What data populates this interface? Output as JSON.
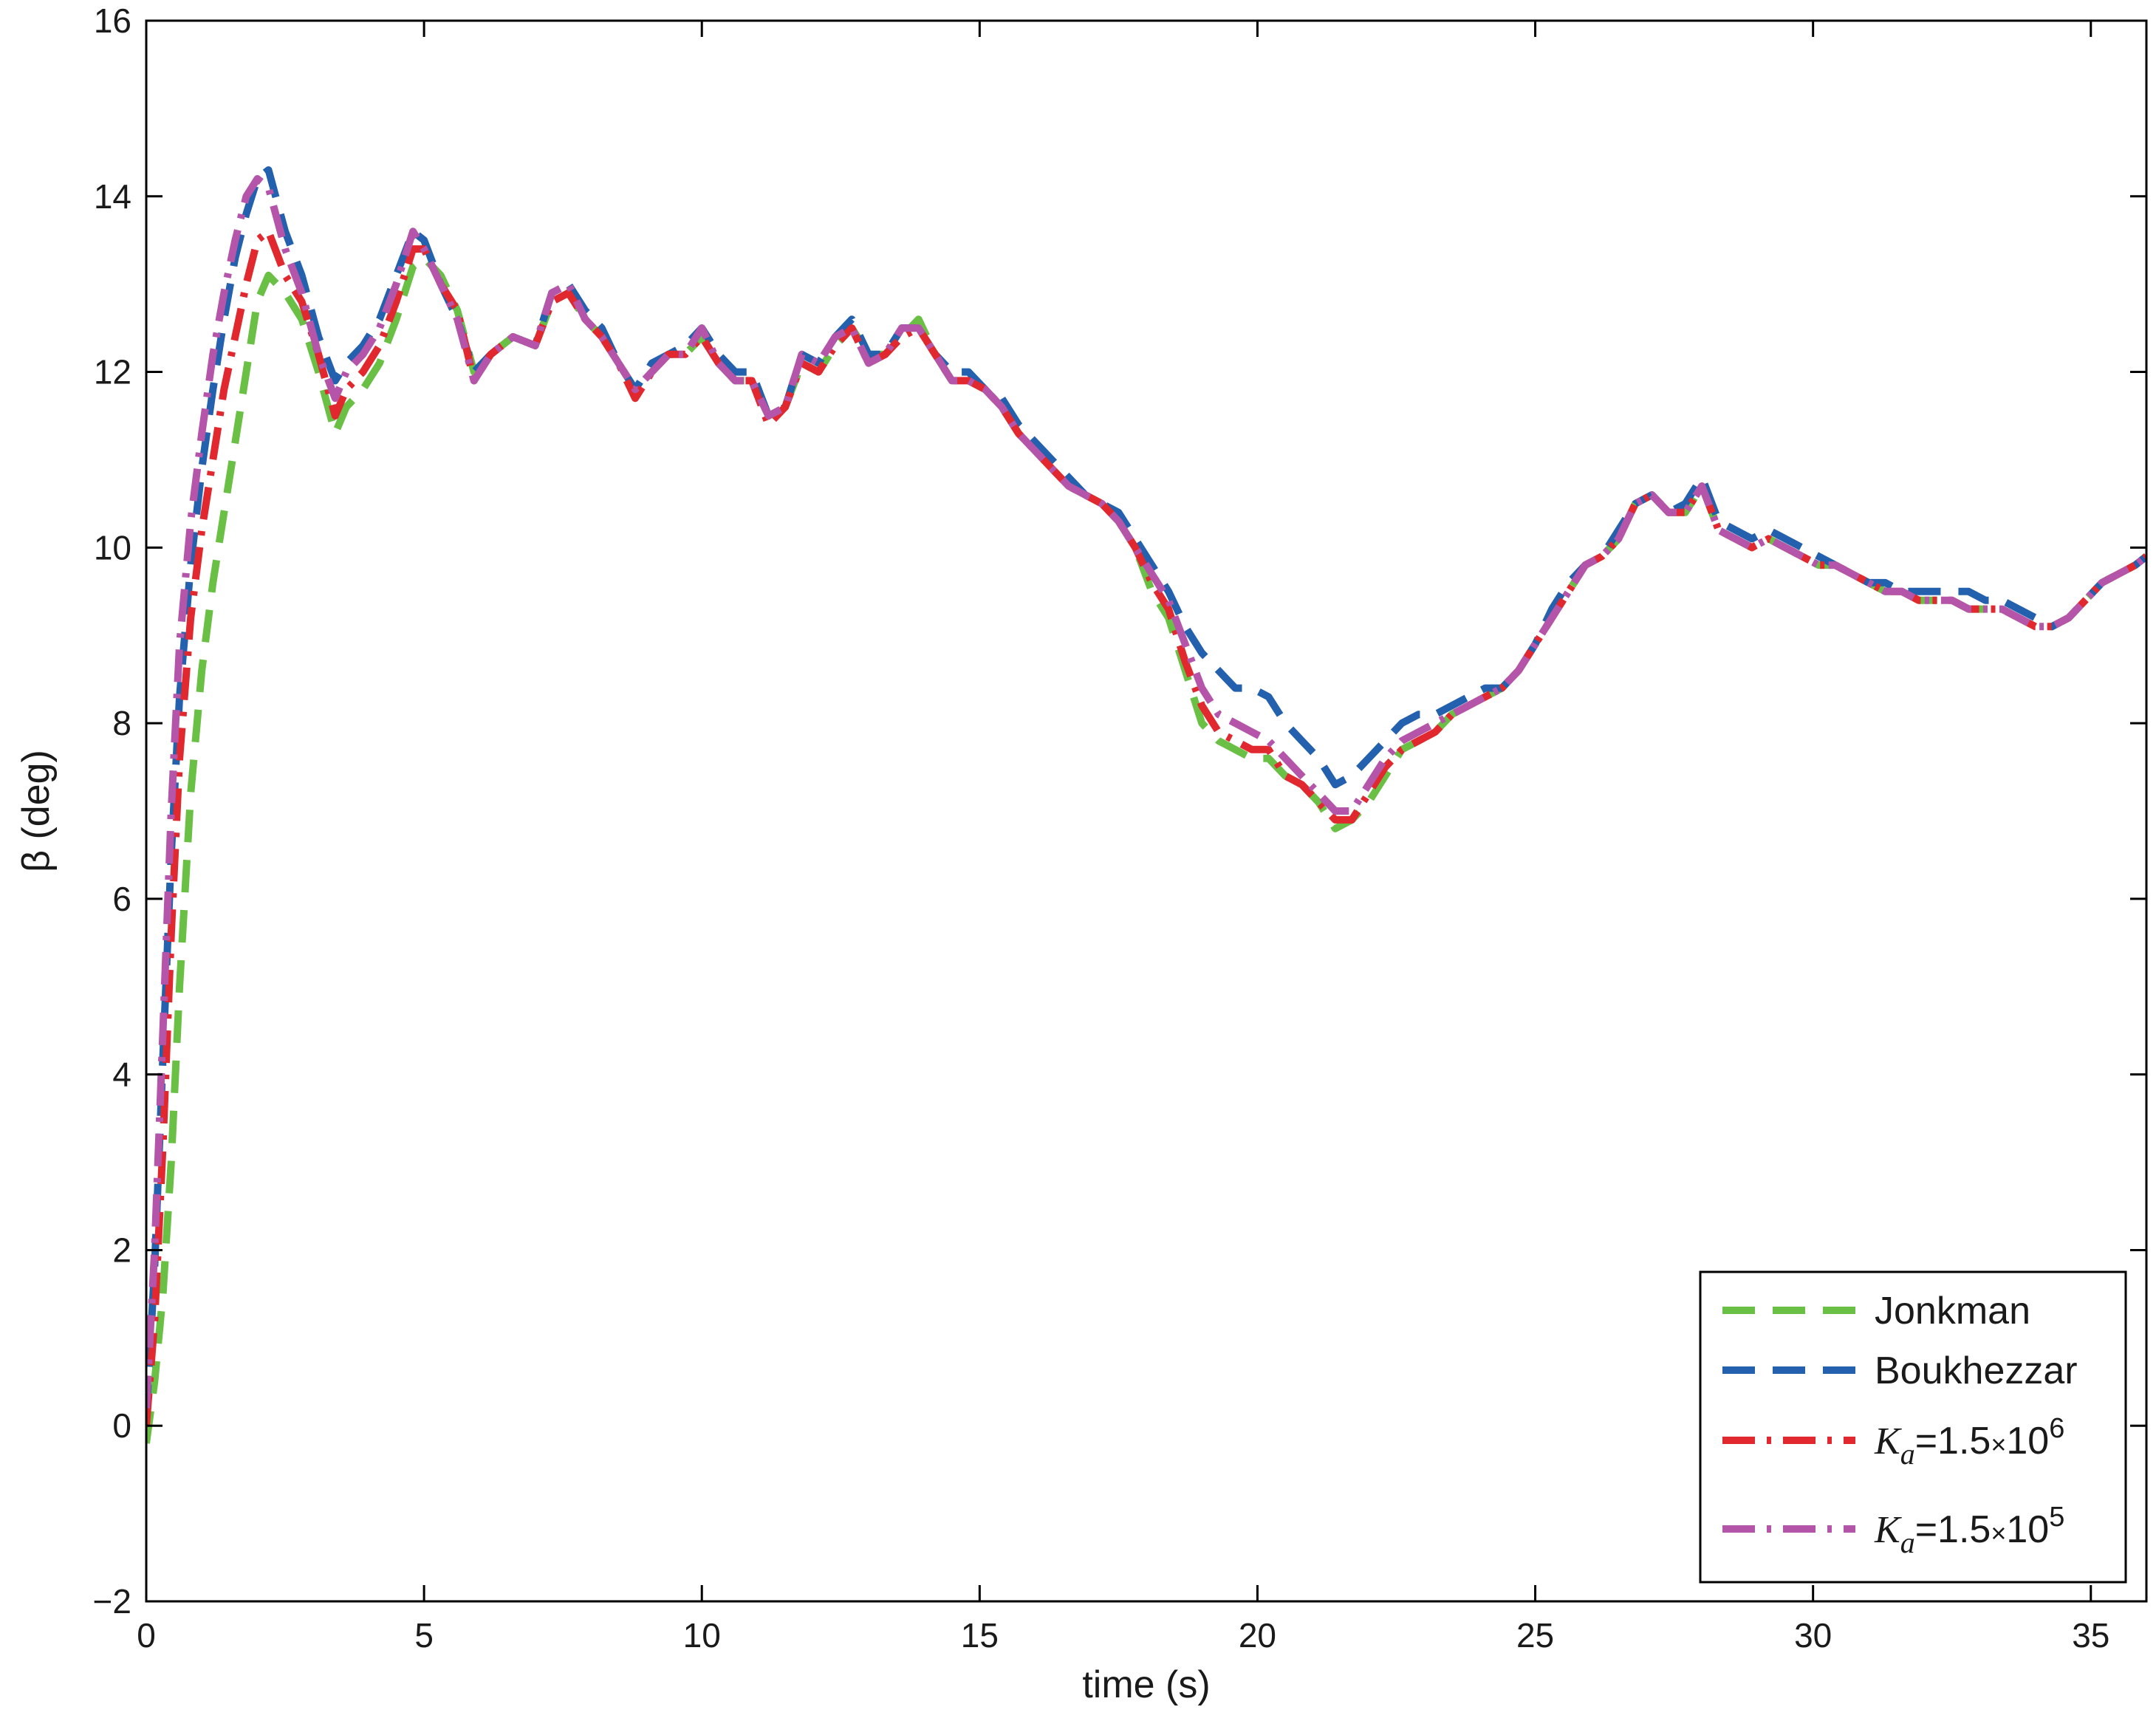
{
  "chart_data": {
    "type": "line",
    "title": "",
    "xlabel": "time (s)",
    "ylabel": "β (deg)",
    "xlim": [
      0,
      36
    ],
    "ylim": [
      -2,
      16
    ],
    "xticks": [
      0,
      5,
      10,
      15,
      20,
      25,
      30,
      35
    ],
    "yticks": [
      -2,
      0,
      2,
      4,
      6,
      8,
      10,
      12,
      14,
      16
    ],
    "xtick_labels": [
      "0",
      "5",
      "10",
      "15",
      "20",
      "25",
      "30",
      "35"
    ],
    "ytick_labels": [
      "−2",
      "0",
      "2",
      "4",
      "6",
      "8",
      "10",
      "12",
      "14",
      "16"
    ],
    "grid": false,
    "legend_position": "bottom-right",
    "series": [
      {
        "name": "Jonkman",
        "color": "#6abf45",
        "style": "dashed",
        "x": [
          0,
          0.15,
          0.3,
          0.45,
          0.6,
          0.8,
          1.0,
          1.2,
          1.4,
          1.6,
          1.8,
          2.0,
          2.2,
          2.5,
          2.8,
          3.1,
          3.4,
          3.6,
          3.9,
          4.2,
          4.5,
          4.8,
          5.0,
          5.3,
          5.6,
          5.9,
          6.2,
          6.6,
          7.0,
          7.3,
          7.6,
          7.9,
          8.2,
          8.5,
          8.8,
          9.1,
          9.4,
          9.7,
          10.0,
          10.3,
          10.6,
          10.9,
          11.2,
          11.5,
          11.8,
          12.1,
          12.4,
          12.7,
          13.0,
          13.3,
          13.6,
          13.9,
          14.2,
          14.5,
          14.8,
          15.1,
          15.4,
          15.7,
          16.0,
          16.3,
          16.6,
          16.9,
          17.2,
          17.5,
          17.8,
          18.1,
          18.4,
          18.7,
          19.0,
          19.3,
          19.6,
          19.9,
          20.2,
          20.5,
          20.8,
          21.1,
          21.4,
          21.7,
          22.0,
          22.3,
          22.6,
          22.9,
          23.2,
          23.5,
          23.8,
          24.1,
          24.4,
          24.7,
          25.0,
          25.3,
          25.6,
          25.9,
          26.2,
          26.5,
          26.8,
          27.1,
          27.4,
          27.7,
          28.0,
          28.3,
          28.6,
          28.9,
          29.2,
          29.5,
          29.8,
          30.1,
          30.4,
          30.7,
          31.0,
          31.3,
          31.6,
          31.9,
          32.2,
          32.5,
          32.8,
          33.1,
          33.4,
          33.7,
          34.0,
          34.3,
          34.6,
          34.9,
          35.2,
          35.5,
          35.8,
          36.0
        ],
        "y": [
          -0.2,
          0.5,
          1.5,
          3.0,
          5.0,
          7.2,
          8.6,
          9.6,
          10.4,
          11.2,
          12.0,
          12.8,
          13.1,
          12.9,
          12.6,
          12.0,
          11.3,
          11.6,
          11.8,
          12.1,
          12.6,
          13.2,
          13.3,
          13.1,
          12.7,
          12.0,
          12.2,
          12.4,
          12.3,
          12.8,
          12.9,
          12.6,
          12.4,
          12.1,
          11.8,
          12.0,
          12.2,
          12.2,
          12.4,
          12.1,
          11.9,
          11.9,
          11.5,
          11.6,
          12.1,
          12.0,
          12.3,
          12.5,
          12.2,
          12.2,
          12.4,
          12.6,
          12.2,
          11.9,
          11.9,
          11.8,
          11.6,
          11.3,
          11.1,
          10.9,
          10.7,
          10.6,
          10.5,
          10.3,
          10.0,
          9.5,
          9.2,
          8.6,
          8.0,
          7.8,
          7.7,
          7.6,
          7.6,
          7.4,
          7.3,
          7.1,
          6.8,
          6.9,
          7.1,
          7.4,
          7.7,
          7.8,
          7.9,
          8.1,
          8.2,
          8.3,
          8.4,
          8.6,
          8.9,
          9.2,
          9.5,
          9.8,
          9.9,
          10.1,
          10.5,
          10.6,
          10.4,
          10.4,
          10.7,
          10.2,
          10.1,
          10.0,
          10.1,
          10.0,
          9.9,
          9.8,
          9.8,
          9.7,
          9.6,
          9.5,
          9.5,
          9.4,
          9.4,
          9.4,
          9.3,
          9.3,
          9.3,
          9.2,
          9.1,
          9.1,
          9.2,
          9.4,
          9.6,
          9.7,
          9.8,
          9.9
        ]
      },
      {
        "name": "Boukhezzar",
        "color": "#2360ad",
        "style": "dashed",
        "x": [
          0,
          0.15,
          0.3,
          0.45,
          0.6,
          0.8,
          1.0,
          1.2,
          1.4,
          1.6,
          1.8,
          2.0,
          2.2,
          2.5,
          2.8,
          3.1,
          3.4,
          3.6,
          3.9,
          4.2,
          4.5,
          4.8,
          5.0,
          5.3,
          5.6,
          5.9,
          6.2,
          6.6,
          7.0,
          7.3,
          7.6,
          7.9,
          8.2,
          8.5,
          8.8,
          9.1,
          9.4,
          9.7,
          10.0,
          10.3,
          10.6,
          10.9,
          11.2,
          11.5,
          11.8,
          12.1,
          12.4,
          12.7,
          13.0,
          13.3,
          13.6,
          13.9,
          14.2,
          14.5,
          14.8,
          15.1,
          15.4,
          15.7,
          16.0,
          16.3,
          16.6,
          16.9,
          17.2,
          17.5,
          17.8,
          18.1,
          18.4,
          18.7,
          19.0,
          19.3,
          19.6,
          19.9,
          20.2,
          20.5,
          20.8,
          21.1,
          21.4,
          21.7,
          22.0,
          22.3,
          22.6,
          22.9,
          23.2,
          23.5,
          23.8,
          24.1,
          24.4,
          24.7,
          25.0,
          25.3,
          25.6,
          25.9,
          26.2,
          26.5,
          26.8,
          27.1,
          27.4,
          27.7,
          28.0,
          28.3,
          28.6,
          28.9,
          29.2,
          29.5,
          29.8,
          30.1,
          30.4,
          30.7,
          31.0,
          31.3,
          31.6,
          31.9,
          32.2,
          32.5,
          32.8,
          33.1,
          33.4,
          33.7,
          34.0,
          34.3,
          34.6,
          34.9,
          35.2,
          35.5,
          35.8,
          36.0
        ],
        "y": [
          0.1,
          1.8,
          4.2,
          6.5,
          8.3,
          9.8,
          10.9,
          11.8,
          12.6,
          13.3,
          13.8,
          14.2,
          14.3,
          13.6,
          13.1,
          12.4,
          11.9,
          12.1,
          12.3,
          12.6,
          13.1,
          13.6,
          13.5,
          13.0,
          12.6,
          12.0,
          12.2,
          12.4,
          12.3,
          12.9,
          13.0,
          12.7,
          12.5,
          12.1,
          11.8,
          12.1,
          12.2,
          12.3,
          12.5,
          12.2,
          12.0,
          12.0,
          11.5,
          11.6,
          12.2,
          12.1,
          12.4,
          12.6,
          12.2,
          12.2,
          12.5,
          12.5,
          12.2,
          12.0,
          12.0,
          11.8,
          11.7,
          11.4,
          11.2,
          11.0,
          10.8,
          10.6,
          10.5,
          10.4,
          10.1,
          9.8,
          9.5,
          9.1,
          8.8,
          8.6,
          8.4,
          8.4,
          8.3,
          8.0,
          7.8,
          7.6,
          7.3,
          7.4,
          7.6,
          7.8,
          8.0,
          8.1,
          8.1,
          8.2,
          8.3,
          8.4,
          8.4,
          8.6,
          8.9,
          9.3,
          9.6,
          9.8,
          9.9,
          10.2,
          10.5,
          10.6,
          10.4,
          10.5,
          10.8,
          10.3,
          10.2,
          10.1,
          10.2,
          10.1,
          10.0,
          9.9,
          9.8,
          9.7,
          9.6,
          9.6,
          9.5,
          9.5,
          9.5,
          9.5,
          9.5,
          9.4,
          9.4,
          9.3,
          9.2,
          9.1,
          9.2,
          9.4,
          9.6,
          9.7,
          9.8,
          9.9
        ]
      },
      {
        "name": "",
        "color": "#e0282e",
        "style": "dashdot",
        "x": [
          0,
          0.15,
          0.3,
          0.45,
          0.6,
          0.8,
          1.0,
          1.2,
          1.4,
          1.6,
          1.8,
          2.0,
          2.2,
          2.5,
          2.8,
          3.1,
          3.4,
          3.6,
          3.9,
          4.2,
          4.5,
          4.8,
          5.0,
          5.3,
          5.6,
          5.9,
          6.2,
          6.6,
          7.0,
          7.3,
          7.6,
          7.9,
          8.2,
          8.5,
          8.8,
          9.1,
          9.4,
          9.7,
          10.0,
          10.3,
          10.6,
          10.9,
          11.2,
          11.5,
          11.8,
          12.1,
          12.4,
          12.7,
          13.0,
          13.3,
          13.6,
          13.9,
          14.2,
          14.5,
          14.8,
          15.1,
          15.4,
          15.7,
          16.0,
          16.3,
          16.6,
          16.9,
          17.2,
          17.5,
          17.8,
          18.1,
          18.4,
          18.7,
          19.0,
          19.3,
          19.6,
          19.9,
          20.2,
          20.5,
          20.8,
          21.1,
          21.4,
          21.7,
          22.0,
          22.3,
          22.6,
          22.9,
          23.2,
          23.5,
          23.8,
          24.1,
          24.4,
          24.7,
          25.0,
          25.3,
          25.6,
          25.9,
          26.2,
          26.5,
          26.8,
          27.1,
          27.4,
          27.7,
          28.0,
          28.3,
          28.6,
          28.9,
          29.2,
          29.5,
          29.8,
          30.1,
          30.4,
          30.7,
          31.0,
          31.3,
          31.6,
          31.9,
          32.2,
          32.5,
          32.8,
          33.1,
          33.4,
          33.7,
          34.0,
          34.3,
          34.6,
          34.9,
          35.2,
          35.5,
          35.8,
          36.0
        ],
        "y": [
          0.0,
          1.2,
          3.2,
          5.6,
          7.6,
          9.2,
          10.2,
          11.0,
          11.8,
          12.4,
          13.0,
          13.5,
          13.6,
          13.1,
          12.8,
          12.2,
          11.5,
          11.8,
          12.0,
          12.3,
          12.8,
          13.4,
          13.4,
          13.0,
          12.7,
          11.9,
          12.2,
          12.4,
          12.3,
          12.8,
          12.9,
          12.6,
          12.4,
          12.1,
          11.7,
          12.0,
          12.2,
          12.2,
          12.4,
          12.1,
          11.9,
          11.9,
          11.4,
          11.6,
          12.1,
          12.0,
          12.3,
          12.5,
          12.1,
          12.2,
          12.4,
          12.5,
          12.2,
          11.9,
          11.9,
          11.8,
          11.6,
          11.3,
          11.1,
          10.9,
          10.7,
          10.6,
          10.5,
          10.3,
          10.0,
          9.6,
          9.3,
          8.7,
          8.2,
          7.9,
          7.8,
          7.7,
          7.7,
          7.4,
          7.3,
          7.1,
          6.9,
          6.9,
          7.2,
          7.5,
          7.7,
          7.8,
          7.9,
          8.1,
          8.2,
          8.3,
          8.4,
          8.6,
          8.9,
          9.2,
          9.5,
          9.8,
          9.9,
          10.1,
          10.5,
          10.6,
          10.4,
          10.4,
          10.7,
          10.2,
          10.1,
          10.0,
          10.1,
          10.0,
          9.9,
          9.8,
          9.8,
          9.7,
          9.6,
          9.5,
          9.5,
          9.4,
          9.4,
          9.4,
          9.3,
          9.3,
          9.3,
          9.2,
          9.1,
          9.1,
          9.2,
          9.4,
          9.6,
          9.7,
          9.8,
          9.9
        ]
      },
      {
        "name": "",
        "color": "#b555aa",
        "style": "dashdot",
        "x": [
          0,
          0.15,
          0.3,
          0.45,
          0.6,
          0.8,
          1.0,
          1.2,
          1.4,
          1.6,
          1.8,
          2.0,
          2.2,
          2.5,
          2.8,
          3.1,
          3.4,
          3.6,
          3.9,
          4.2,
          4.5,
          4.8,
          5.0,
          5.3,
          5.6,
          5.9,
          6.2,
          6.6,
          7.0,
          7.3,
          7.6,
          7.9,
          8.2,
          8.5,
          8.8,
          9.1,
          9.4,
          9.7,
          10.0,
          10.3,
          10.6,
          10.9,
          11.2,
          11.5,
          11.8,
          12.1,
          12.4,
          12.7,
          13.0,
          13.3,
          13.6,
          13.9,
          14.2,
          14.5,
          14.8,
          15.1,
          15.4,
          15.7,
          16.0,
          16.3,
          16.6,
          16.9,
          17.2,
          17.5,
          17.8,
          18.1,
          18.4,
          18.7,
          19.0,
          19.3,
          19.6,
          19.9,
          20.2,
          20.5,
          20.8,
          21.1,
          21.4,
          21.7,
          22.0,
          22.3,
          22.6,
          22.9,
          23.2,
          23.5,
          23.8,
          24.1,
          24.4,
          24.7,
          25.0,
          25.3,
          25.6,
          25.9,
          26.2,
          26.5,
          26.8,
          27.1,
          27.4,
          27.7,
          28.0,
          28.3,
          28.6,
          28.9,
          29.2,
          29.5,
          29.8,
          30.1,
          30.4,
          30.7,
          31.0,
          31.3,
          31.6,
          31.9,
          32.2,
          32.5,
          32.8,
          33.1,
          33.4,
          33.7,
          34.0,
          34.3,
          34.6,
          34.9,
          35.2,
          35.5,
          35.8,
          36.0
        ],
        "y": [
          0.2,
          2.0,
          4.5,
          7.0,
          8.9,
          10.3,
          11.3,
          12.2,
          12.9,
          13.5,
          14.0,
          14.2,
          14.1,
          13.4,
          12.9,
          12.2,
          11.7,
          12.0,
          12.2,
          12.5,
          13.0,
          13.6,
          13.4,
          13.0,
          12.6,
          11.9,
          12.2,
          12.4,
          12.3,
          12.9,
          13.0,
          12.6,
          12.4,
          12.1,
          11.8,
          12.0,
          12.2,
          12.2,
          12.5,
          12.1,
          11.9,
          11.9,
          11.5,
          11.6,
          12.2,
          12.1,
          12.4,
          12.5,
          12.1,
          12.2,
          12.5,
          12.5,
          12.2,
          11.9,
          11.9,
          11.8,
          11.6,
          11.3,
          11.1,
          10.9,
          10.7,
          10.6,
          10.5,
          10.3,
          10.0,
          9.7,
          9.4,
          8.9,
          8.4,
          8.1,
          8.0,
          7.9,
          7.8,
          7.6,
          7.4,
          7.2,
          7.0,
          7.0,
          7.3,
          7.6,
          7.8,
          7.9,
          8.0,
          8.1,
          8.2,
          8.3,
          8.4,
          8.6,
          8.9,
          9.2,
          9.5,
          9.8,
          9.9,
          10.1,
          10.5,
          10.6,
          10.4,
          10.4,
          10.7,
          10.2,
          10.1,
          10.0,
          10.1,
          10.0,
          9.9,
          9.8,
          9.8,
          9.7,
          9.6,
          9.5,
          9.5,
          9.4,
          9.4,
          9.4,
          9.3,
          9.3,
          9.3,
          9.2,
          9.1,
          9.1,
          9.2,
          9.4,
          9.6,
          9.7,
          9.8,
          9.9
        ]
      }
    ],
    "legend": {
      "entries": [
        {
          "label": "Jonkman"
        },
        {
          "label": "Boukhezzar"
        },
        {
          "label_base": "K",
          "label_sub": "a",
          "label_mid": "=1.5",
          "label_times": "×",
          "label_ten": "10",
          "label_exp": "6"
        },
        {
          "label_base": "K",
          "label_sub": "a",
          "label_mid": "=1.5",
          "label_times": "×",
          "label_ten": "10",
          "label_exp": "5"
        }
      ]
    }
  }
}
